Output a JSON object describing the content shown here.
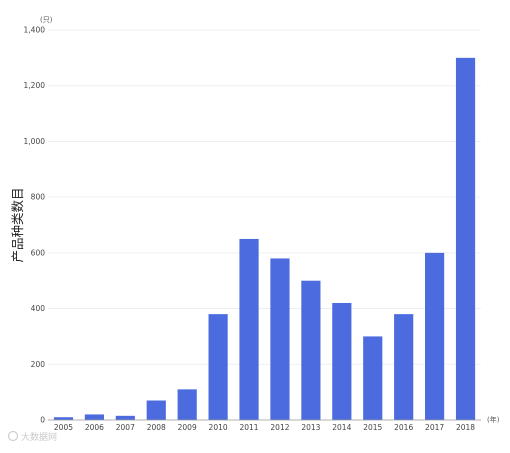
{
  "chart_data": {
    "type": "bar",
    "title": "",
    "xlabel": "",
    "ylabel": "产品种类数目",
    "y_unit": "(只)",
    "x_unit": "(年)",
    "categories": [
      "2005",
      "2006",
      "2007",
      "2008",
      "2009",
      "2010",
      "2011",
      "2012",
      "2013",
      "2014",
      "2015",
      "2016",
      "2017",
      "2018"
    ],
    "values": [
      10,
      20,
      15,
      70,
      110,
      380,
      650,
      580,
      500,
      420,
      300,
      380,
      600,
      1300
    ],
    "ylim": [
      0,
      1400
    ],
    "yticks": [
      0,
      200,
      400,
      600,
      800,
      1000,
      1200,
      1400
    ],
    "ytick_labels": [
      "0",
      "200",
      "400",
      "600",
      "800",
      "1,000",
      "1,200",
      "1,400"
    ],
    "grid": true,
    "bar_color": "#4b6bde"
  },
  "watermark": {
    "text": "大数据网"
  }
}
